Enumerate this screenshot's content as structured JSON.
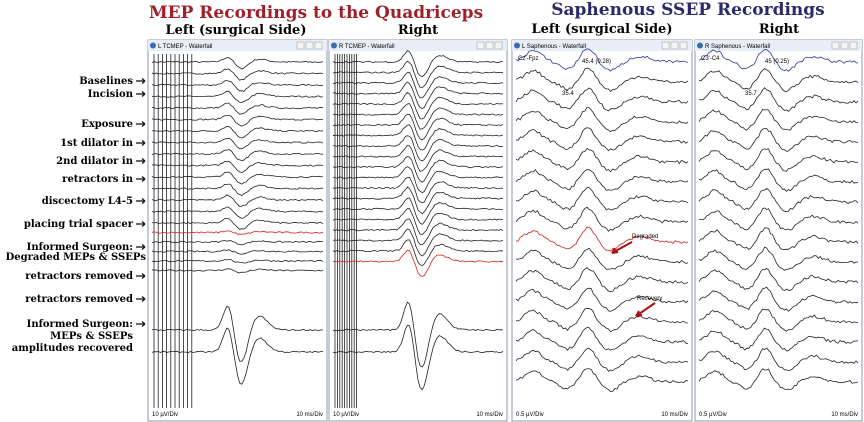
{
  "header": {
    "mep_title": "MEP Recordings to the Quadriceps",
    "ssep_title": "Saphenous SSEP Recordings"
  },
  "panels": [
    {
      "subtitle": "Left (surgical Side)",
      "window_title": "L TCMEP - Waterfall",
      "scale_left": "10 µV/Div",
      "scale_right": "10 ms/Div",
      "annotations": []
    },
    {
      "subtitle": "Right",
      "window_title": "R TCMEP - Waterfall",
      "scale_left": "10 µV/Div",
      "scale_right": "10 ms/Div",
      "annotations": []
    },
    {
      "subtitle": "Left (surgical Side)",
      "window_title": "L Saphenous - Waterfall",
      "scale_left": "0.5 µV/Div",
      "scale_right": "10 ms/Div",
      "annotations": [
        "Cz'-Fpz",
        "45.4 (0.28)",
        "35.4",
        "Degraded",
        "Recovery"
      ]
    },
    {
      "subtitle": "Right",
      "window_title": "R Saphenous - Waterfall",
      "scale_left": "0.5 µV/Div",
      "scale_right": "10 ms/Div",
      "annotations": [
        "C3'-C4",
        "45 (0.25)",
        "35.7"
      ]
    }
  ],
  "row_labels": [
    {
      "lines": [
        "Baselines"
      ]
    },
    {
      "lines": [
        "Incision"
      ]
    },
    {
      "lines": [
        "Exposure"
      ]
    },
    {
      "lines": [
        "1st dilator in"
      ]
    },
    {
      "lines": [
        "2nd dilator in"
      ]
    },
    {
      "lines": [
        "retractors in"
      ]
    },
    {
      "lines": [
        "discectomy L4-5"
      ]
    },
    {
      "lines": [
        "placing trial spacer"
      ]
    },
    {
      "lines": [
        "Informed Surgeon:",
        "Degraded MEPs & SSEPs"
      ]
    },
    {
      "lines": [
        "retractors removed"
      ]
    },
    {
      "lines": [
        "retractors removed"
      ]
    },
    {
      "lines": [
        "Informed Surgeon:",
        "MEPs & SSEPs",
        "amplitudes recovered"
      ]
    }
  ]
}
